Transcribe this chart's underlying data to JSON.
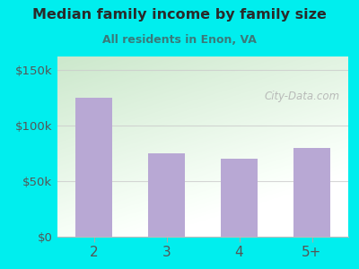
{
  "categories": [
    "2",
    "3",
    "4",
    "5+"
  ],
  "values": [
    125000,
    75000,
    70000,
    80000
  ],
  "bar_color": "#b8a8d4",
  "title": "Median family income by family size",
  "subtitle": "All residents in Enon, VA",
  "title_color": "#2a2a2a",
  "subtitle_color": "#3a7a7a",
  "bg_color": "#00eeee",
  "plot_bg_top_left": "#cce8cc",
  "plot_bg_bottom_right": "#f8fff8",
  "yticks": [
    0,
    50000,
    100000,
    150000
  ],
  "ylim": [
    0,
    162000
  ],
  "watermark": "City-Data.com",
  "grid_color": "#cccccc",
  "tick_label_color": "#555555",
  "title_fontsize": 11.5,
  "subtitle_fontsize": 9
}
